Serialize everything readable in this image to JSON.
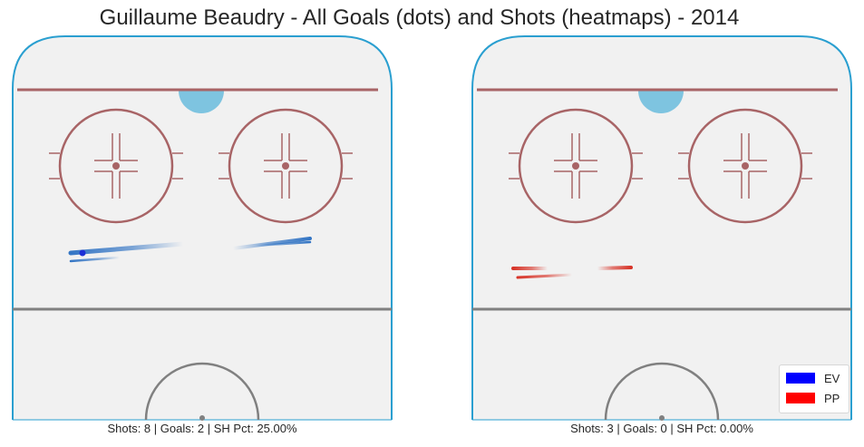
{
  "chart_data": {
    "type": "heatmap",
    "title": "Guillaume Beaudry - All Goals (dots) and Shots (heatmaps) - 2014",
    "panels": [
      {
        "strength": "EV",
        "summary": "Shots: 8 | Goals: 2 | SH Pct: 25.00%",
        "shots": 8,
        "goals": 2,
        "shooting_pct": 25.0,
        "color": "#2a6fc2"
      },
      {
        "strength": "PP",
        "summary": "Shots: 3 | Goals: 0 | SH Pct: 0.00%",
        "shots": 3,
        "goals": 0,
        "shooting_pct": 0.0,
        "color": "#d62a1e"
      }
    ],
    "legend": {
      "position": "lower-right",
      "items": [
        {
          "label": "EV",
          "color": "#0000ff"
        },
        {
          "label": "PP",
          "color": "#ff0000"
        }
      ]
    },
    "grid": false
  },
  "rink_colors": {
    "ice": "#f1f1f1",
    "boards": "#2a9fd0",
    "red_line": "#a86466",
    "blue_line": "#808080",
    "crease": "#7ec4e0"
  }
}
